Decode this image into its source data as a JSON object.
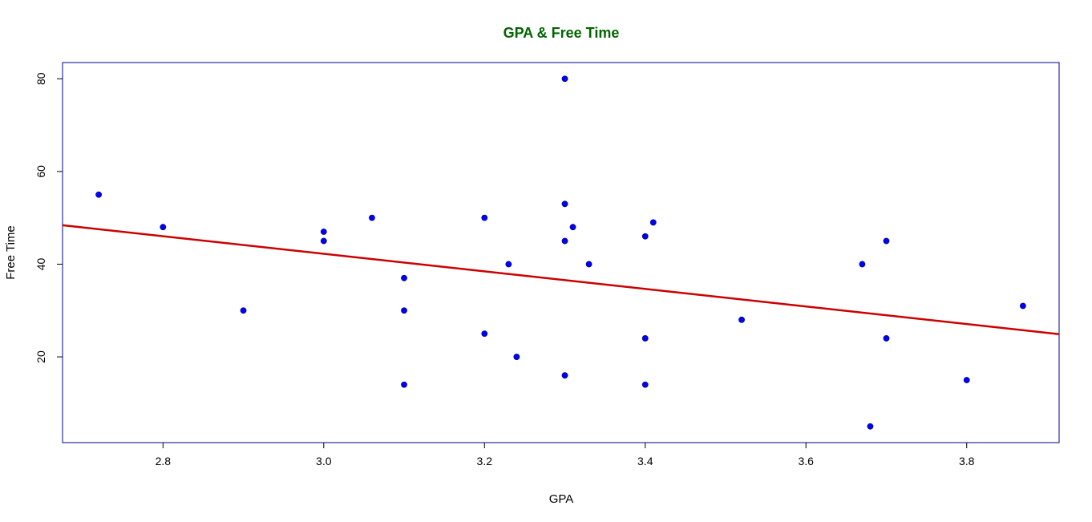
{
  "chart_data": {
    "type": "scatter",
    "title": "GPA & Free Time",
    "xlabel": "GPA",
    "ylabel": "Free Time",
    "xlim": [
      2.675,
      3.915
    ],
    "ylim": [
      1.5,
      83.5
    ],
    "xticks": [
      2.8,
      3.0,
      3.2,
      3.4,
      3.6,
      3.8
    ],
    "xtick_labels": [
      "2.8",
      "3.0",
      "3.2",
      "3.4",
      "3.6",
      "3.8"
    ],
    "yticks": [
      20,
      40,
      60,
      80
    ],
    "ytick_labels": [
      "20",
      "40",
      "60",
      "80"
    ],
    "grid": false,
    "colors": {
      "title": "#006400",
      "points": "#0000ff",
      "points_edge": "#00008b",
      "line": "#cc0000",
      "frame": "#00008b"
    },
    "points": [
      {
        "x": 2.72,
        "y": 55
      },
      {
        "x": 2.8,
        "y": 48
      },
      {
        "x": 2.9,
        "y": 30
      },
      {
        "x": 3.0,
        "y": 47
      },
      {
        "x": 3.0,
        "y": 45
      },
      {
        "x": 3.06,
        "y": 50
      },
      {
        "x": 3.1,
        "y": 37
      },
      {
        "x": 3.1,
        "y": 30
      },
      {
        "x": 3.1,
        "y": 14
      },
      {
        "x": 3.2,
        "y": 50
      },
      {
        "x": 3.2,
        "y": 25
      },
      {
        "x": 3.23,
        "y": 40
      },
      {
        "x": 3.24,
        "y": 20
      },
      {
        "x": 3.3,
        "y": 80
      },
      {
        "x": 3.3,
        "y": 53
      },
      {
        "x": 3.3,
        "y": 45
      },
      {
        "x": 3.3,
        "y": 16
      },
      {
        "x": 3.31,
        "y": 48
      },
      {
        "x": 3.33,
        "y": 40
      },
      {
        "x": 3.4,
        "y": 46
      },
      {
        "x": 3.4,
        "y": 24
      },
      {
        "x": 3.4,
        "y": 14
      },
      {
        "x": 3.41,
        "y": 49
      },
      {
        "x": 3.52,
        "y": 28
      },
      {
        "x": 3.67,
        "y": 40
      },
      {
        "x": 3.68,
        "y": 5
      },
      {
        "x": 3.7,
        "y": 45
      },
      {
        "x": 3.7,
        "y": 24
      },
      {
        "x": 3.8,
        "y": 15
      },
      {
        "x": 3.87,
        "y": 31
      }
    ],
    "regression_line": {
      "x": [
        2.675,
        3.915
      ],
      "y": [
        48.4,
        24.9
      ]
    }
  }
}
